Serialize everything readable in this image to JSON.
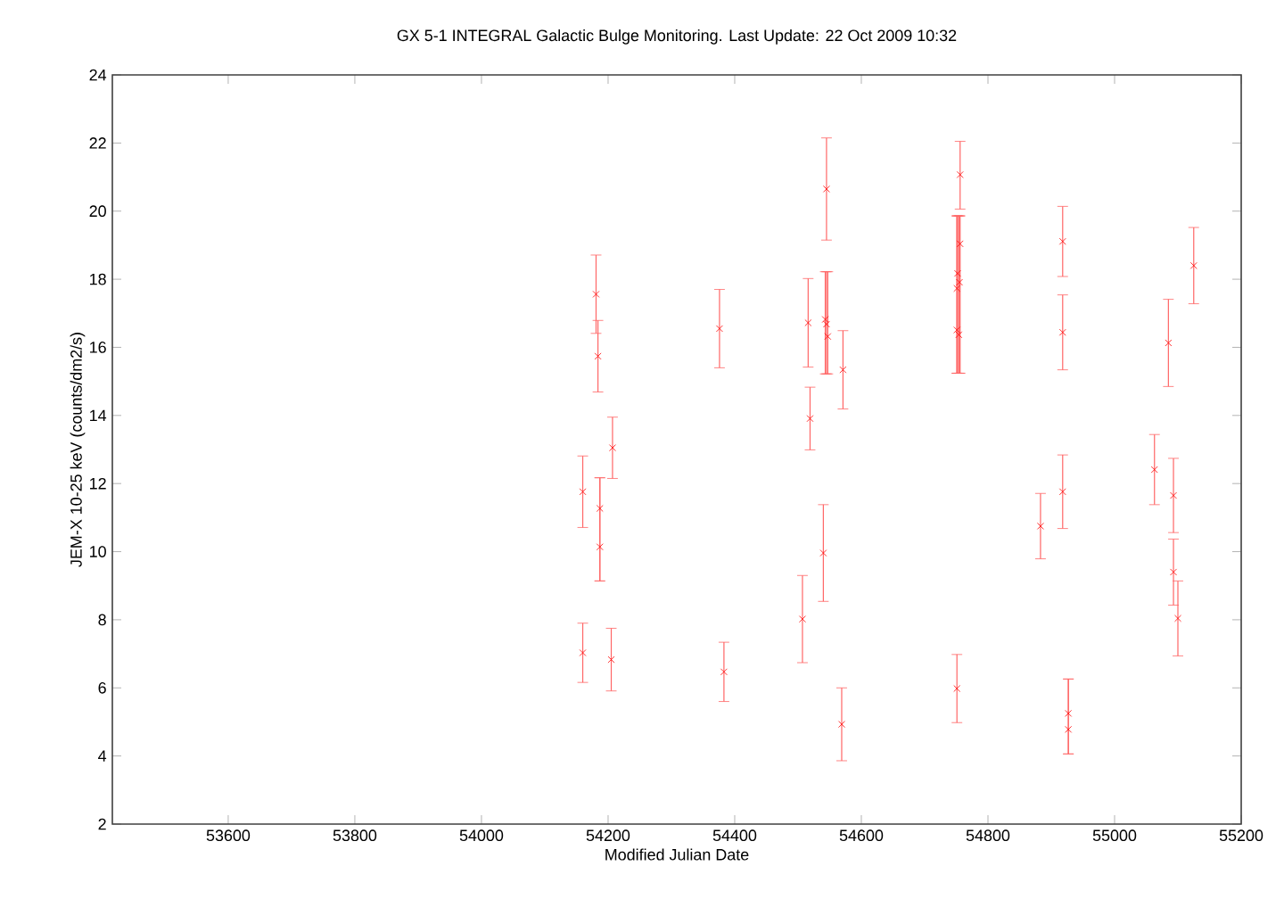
{
  "chart_data": {
    "type": "scatter",
    "title": "GX 5-1   INTEGRAL Galactic Bulge Monitoring.  Last Update: 22 Oct 2009 10:32",
    "xlabel": "Modified Julian Date",
    "ylabel": "JEM-X 10-25 keV (counts/dm2/s)",
    "xlim": [
      53417,
      55200
    ],
    "ylim": [
      2,
      24
    ],
    "xticks": [
      53600,
      53800,
      54000,
      54200,
      54400,
      54600,
      54800,
      55000,
      55200
    ],
    "yticks": [
      2,
      4,
      6,
      8,
      10,
      12,
      14,
      16,
      18,
      20,
      22,
      24
    ],
    "grid": false,
    "marker": "cross",
    "line_style": "none",
    "series": [
      {
        "color": "#ff0000",
        "x": [
          54160,
          54160,
          54181,
          54184,
          54187,
          54187,
          54205,
          54207,
          54376,
          54383,
          54507,
          54516,
          54519,
          54540,
          54545,
          54543,
          54545,
          54547,
          54569,
          54571,
          54752,
          54756,
          54756,
          54751,
          54755,
          54751,
          54754,
          54751,
          54883,
          54918,
          54918,
          54918,
          54927,
          54927,
          55063,
          55085,
          55093,
          55093,
          55100,
          55125
        ],
        "values": [
          11.76,
          7.03,
          17.56,
          15.74,
          11.27,
          10.14,
          6.83,
          13.05,
          16.55,
          6.47,
          8.02,
          16.72,
          13.91,
          9.96,
          20.65,
          16.82,
          16.68,
          16.32,
          4.93,
          15.34,
          18.17,
          21.07,
          19.04,
          17.73,
          17.91,
          16.51,
          16.37,
          5.98,
          10.75,
          19.11,
          16.44,
          11.76,
          5.25,
          4.78,
          12.41,
          16.13,
          11.65,
          9.4,
          8.04,
          18.4
        ],
        "errors": [
          1.05,
          0.87,
          1.15,
          1.05,
          [
            9.14,
            12.17
          ],
          [
            9.14,
            12.17
          ],
          0.92,
          0.9,
          1.15,
          0.87,
          1.28,
          1.3,
          0.92,
          1.42,
          1.5,
          [
            15.22,
            18.22
          ],
          [
            15.22,
            18.22
          ],
          [
            15.22,
            18.22
          ],
          1.07,
          1.15,
          [
            15.24,
            19.86
          ],
          [
            20.06,
            22.05
          ],
          [
            15.24,
            19.86
          ],
          [
            15.24,
            19.86
          ],
          [
            15.24,
            19.86
          ],
          [
            15.24,
            19.86
          ],
          [
            15.24,
            19.86
          ],
          1.0,
          0.96,
          1.03,
          1.1,
          1.08,
          [
            4.06,
            6.26
          ],
          [
            4.06,
            6.26
          ],
          1.03,
          1.28,
          1.09,
          0.97,
          1.1,
          1.12
        ]
      }
    ]
  }
}
